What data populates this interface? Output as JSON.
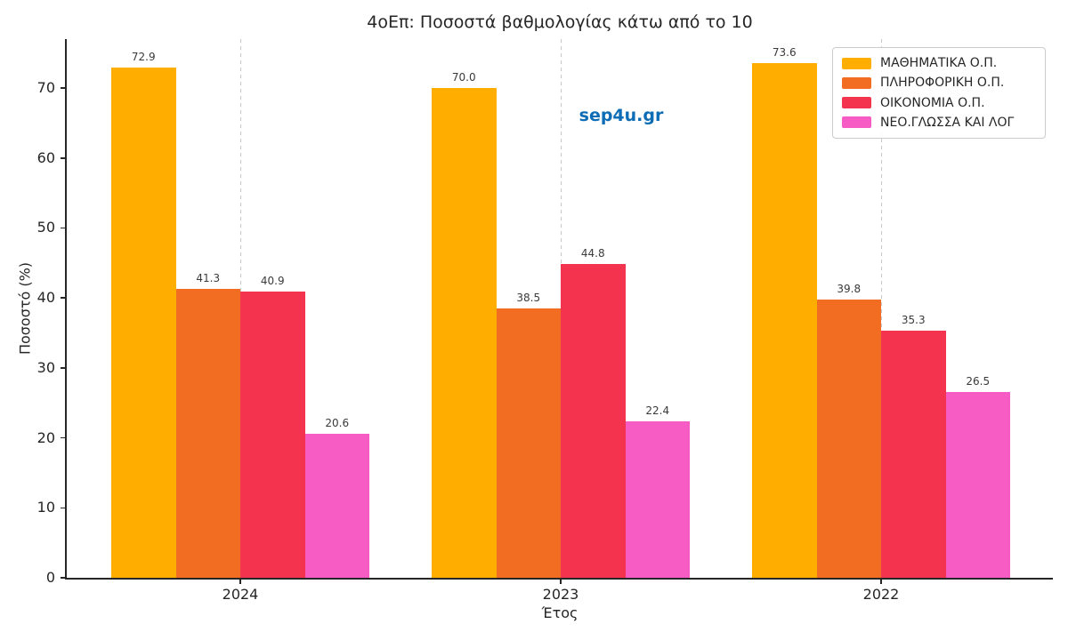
{
  "watermark": "sep4u.gr",
  "chart_data": {
    "type": "bar",
    "title": "4οΕπ: Ποσοστά βαθμολογίας κάτω από το 10",
    "xlabel": "Έτος",
    "ylabel": "Ποσοστό (%)",
    "categories": [
      "2024",
      "2023",
      "2022"
    ],
    "series": [
      {
        "name": "ΜΑΘΗΜΑΤΙΚΑ Ο.Π.",
        "color": "#FFAE00",
        "values": [
          72.9,
          70.0,
          73.6
        ]
      },
      {
        "name": "ΠΛΗΡΟΦΟΡΙΚΗ Ο.Π.",
        "color": "#F26C21",
        "values": [
          41.3,
          38.5,
          39.8
        ]
      },
      {
        "name": "ΟΙΚΟΝΟΜΙΑ Ο.Π.",
        "color": "#F4344F",
        "values": [
          40.9,
          44.8,
          35.3
        ]
      },
      {
        "name": "ΝΕΟ.ΓΛΩΣΣΑ ΚΑΙ ΛΟΓ",
        "color": "#F75BC4",
        "values": [
          20.6,
          22.4,
          26.5
        ]
      }
    ],
    "ylim": [
      0,
      77
    ],
    "yticks": [
      0,
      10,
      20,
      30,
      40,
      50,
      60,
      70
    ],
    "grid": "vertical-dashed",
    "legend_position": "top-right",
    "value_labels": true,
    "value_label_decimals": 1
  },
  "colors": {
    "watermark": "#0C6CB5",
    "gridline": "#CCCCCC",
    "axis": "#262626",
    "text": "#262626"
  }
}
